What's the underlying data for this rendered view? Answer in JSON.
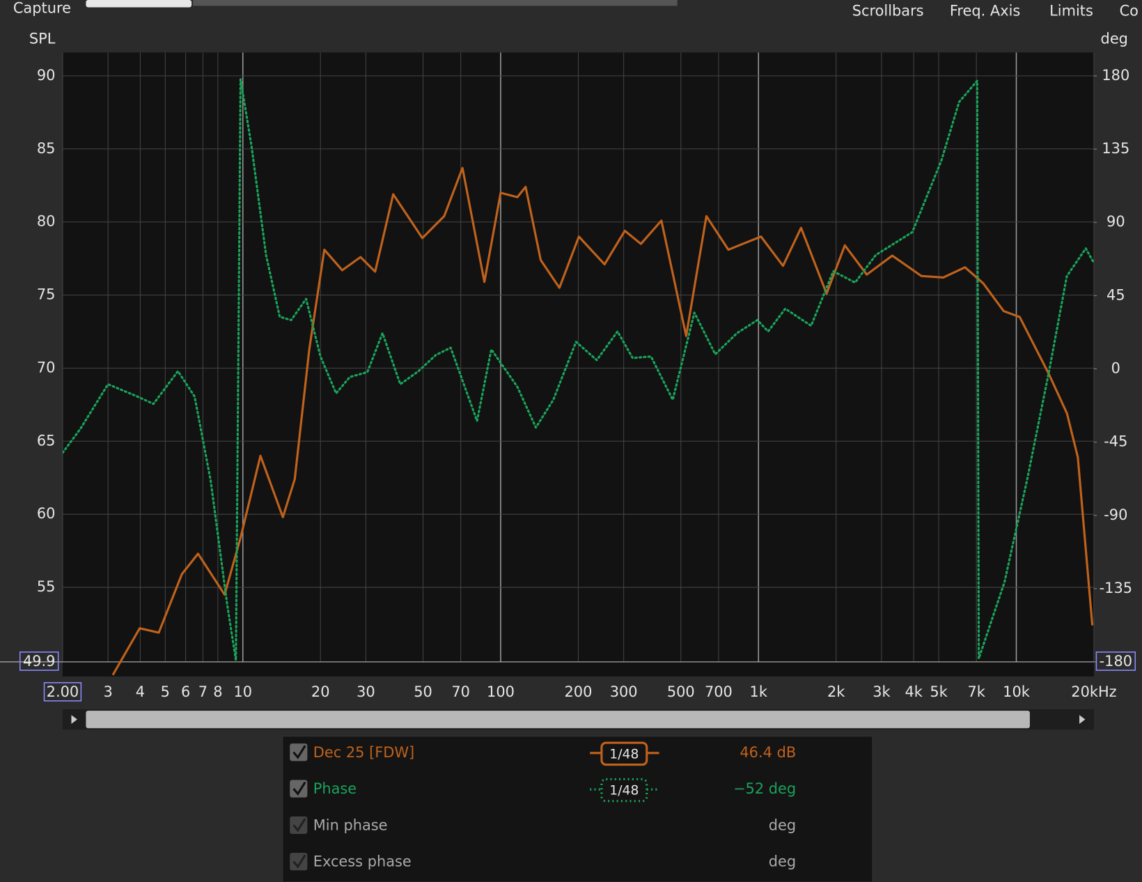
{
  "toolbar": [
    "Capture",
    "Scrollbars",
    "Freq. Axis",
    "Limits",
    "Co"
  ],
  "chart_data": {
    "type": "line",
    "y_label": "SPL",
    "y2_label": "deg",
    "xscale": "log",
    "xlim": [
      2,
      20000
    ],
    "ylim": [
      49.9,
      91.6
    ],
    "y2lim": [
      -180,
      194.4
    ],
    "grid": true,
    "xticks": [
      {
        "value": 2,
        "label": "2.00"
      },
      3,
      4,
      5,
      6,
      7,
      8,
      10,
      20,
      30,
      50,
      70,
      100,
      200,
      300,
      500,
      700,
      {
        "value": 1000,
        "label": "1k"
      },
      {
        "value": 2000,
        "label": "2k"
      },
      {
        "value": 3000,
        "label": "3k"
      },
      {
        "value": 4000,
        "label": "4k"
      },
      {
        "value": 5000,
        "label": "5k"
      },
      {
        "value": 7000,
        "label": "7k"
      },
      {
        "value": 10000,
        "label": "10k"
      },
      {
        "value": 20000,
        "label": "20kHz"
      }
    ],
    "yticks": [
      49.9,
      55,
      60,
      65,
      70,
      75,
      80,
      85,
      90
    ],
    "y2ticks": [
      -180,
      -135,
      -90,
      -45,
      0,
      45,
      90,
      135,
      180
    ],
    "series": [
      {
        "name": "Dec 25 [FDW]",
        "color": "#c0621c",
        "style": "solid",
        "x": [
          3.13,
          3.98,
          4.72,
          5.8,
          6.7,
          8.5,
          9.8,
          11.7,
          14.3,
          15.9,
          18.1,
          20.7,
          24.3,
          28.6,
          32.6,
          38.3,
          49.7,
          60.4,
          71.1,
          86.5,
          100,
          116,
          125,
          143,
          169,
          201,
          253,
          303,
          350,
          420,
          524,
          628,
          764,
          869,
          1023,
          1245,
          1463,
          1837,
          2162,
          2630,
          3303,
          4287,
          5206,
          6325,
          7444,
          8933,
          10310,
          13370,
          15720,
          17320,
          19720
        ],
        "values": [
          49.0,
          52.2,
          51.9,
          55.9,
          57.3,
          54.5,
          58.4,
          64.0,
          59.8,
          62.4,
          71.3,
          78.1,
          76.7,
          77.6,
          76.6,
          81.9,
          78.9,
          80.4,
          83.7,
          75.9,
          82.0,
          81.7,
          82.4,
          77.4,
          75.5,
          79.0,
          77.1,
          79.4,
          78.5,
          80.1,
          72.2,
          80.4,
          78.1,
          78.5,
          79.0,
          77.0,
          79.6,
          75.1,
          78.4,
          76.4,
          77.7,
          76.3,
          76.2,
          76.9,
          75.8,
          73.9,
          73.5,
          69.6,
          66.9,
          63.9,
          52.4
        ]
      },
      {
        "name": "Phase",
        "color": "#1aa35a",
        "style": "dotted",
        "axis": "y2",
        "x": [
          2,
          2.34,
          3.0,
          3.9,
          4.5,
          5.6,
          6.5,
          7.5,
          8.7,
          9.4,
          9.8,
          10.8,
          12.3,
          13.9,
          15.4,
          17.6,
          20,
          23,
          26,
          30.4,
          34.8,
          40.8,
          48,
          56,
          64,
          81,
          92,
          116,
          137,
          160,
          196,
          236,
          284,
          325,
          383,
          465,
          564,
          680,
          826,
          990,
          1090,
          1270,
          1600,
          1950,
          2370,
          2850,
          3950,
          5120,
          6000,
          7050,
          7150,
          9000,
          11000,
          13400,
          15700,
          18600,
          20000
        ],
        "values": [
          -51.5,
          -37,
          -9.4,
          -17,
          -21.5,
          -1.4,
          -17,
          -68.5,
          -145,
          -179,
          178,
          137,
          70,
          32,
          30,
          43,
          7.6,
          -15,
          -5,
          -2,
          22,
          -9.4,
          -1.4,
          8.5,
          13,
          -32,
          12,
          -11,
          -36,
          -19,
          16.6,
          5.4,
          23,
          6.7,
          7.6,
          -19,
          34.5,
          9,
          22,
          30,
          23,
          37,
          26.5,
          60,
          53,
          70,
          84,
          128,
          164,
          177,
          -178,
          -131,
          -68.5,
          -1.4,
          57,
          74,
          65
        ]
      }
    ]
  },
  "legend": [
    {
      "smoothing": "1/48",
      "readout": "46.4 dB"
    },
    {
      "smoothing": "1/48",
      "readout": "−52 deg"
    },
    {
      "name": "Min phase",
      "readout": "deg"
    },
    {
      "name": "Excess phase",
      "readout": "deg"
    }
  ]
}
